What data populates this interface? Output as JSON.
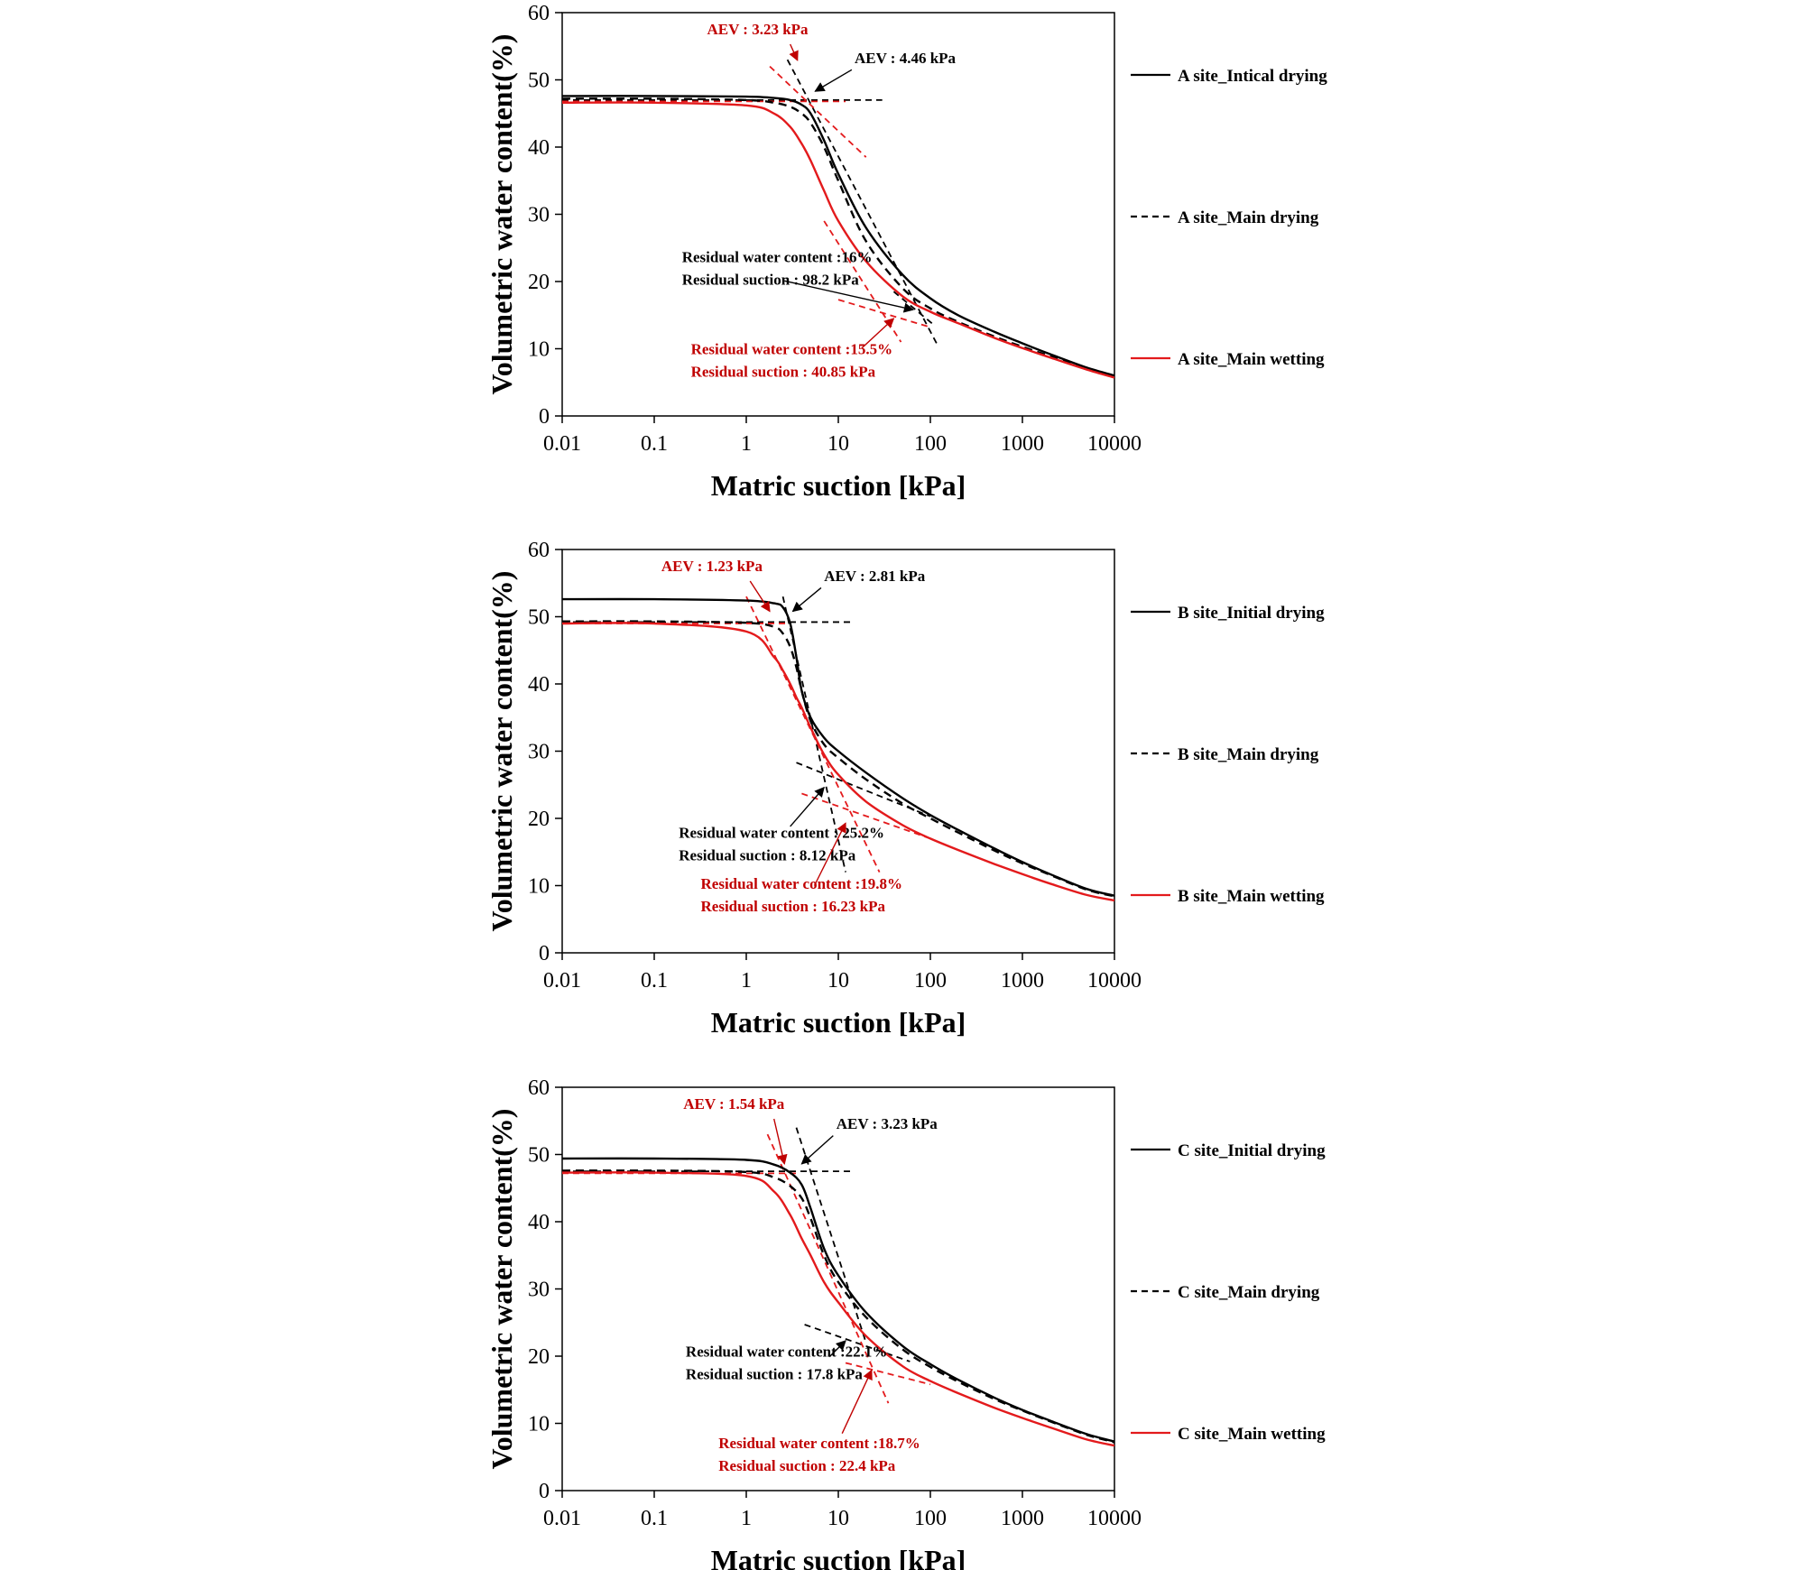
{
  "chart_data": [
    {
      "type": "line",
      "xscale": "log",
      "xlim": [
        0.01,
        10000
      ],
      "ylim": [
        0,
        60
      ],
      "xticks": [
        "0.01",
        "0.1",
        "1",
        "10",
        "100",
        "1000",
        "10000"
      ],
      "yticks": [
        "0",
        "10",
        "20",
        "30",
        "40",
        "50",
        "60"
      ],
      "xlabel": "Matric suction [kPa]",
      "ylabel": "Volumetric water content(%)",
      "legend_position": "right",
      "grid": false,
      "series": [
        {
          "name": "A site_Intical drying",
          "style": "solid",
          "color": "#000000",
          "x": [
            0.01,
            0.1,
            1,
            2,
            3,
            4,
            5,
            7,
            10,
            20,
            50,
            100,
            200,
            500,
            1000,
            2000,
            5000,
            10000
          ],
          "y": [
            47.6,
            47.6,
            47.5,
            47.3,
            47.0,
            46.3,
            45.0,
            41.0,
            36.0,
            28.0,
            21.0,
            17.5,
            15.0,
            12.5,
            10.8,
            9.2,
            7.2,
            6.0
          ]
        },
        {
          "name": "A site_Main drying",
          "style": "dashed",
          "color": "#000000",
          "x": [
            0.01,
            0.1,
            1,
            2,
            3,
            4,
            5,
            7,
            10,
            20,
            50,
            100,
            200,
            500,
            1000,
            2000,
            5000,
            10000
          ],
          "y": [
            47.2,
            47.2,
            47.0,
            46.6,
            46.0,
            45.0,
            43.6,
            40.0,
            35.0,
            26.0,
            19.0,
            16.0,
            14.0,
            11.8,
            10.3,
            8.9,
            7.1,
            5.9
          ]
        },
        {
          "name": "A site_Main wetting",
          "style": "solid",
          "color": "#e31a1c",
          "x": [
            0.01,
            0.1,
            1,
            2,
            3,
            4,
            5,
            7,
            10,
            20,
            50,
            100,
            200,
            500,
            1000,
            2000,
            5000,
            10000
          ],
          "y": [
            46.6,
            46.6,
            46.2,
            45.0,
            43.0,
            40.5,
            38.0,
            33.5,
            29.0,
            23.0,
            17.8,
            15.5,
            13.8,
            11.6,
            10.1,
            8.7,
            6.9,
            5.7
          ]
        }
      ],
      "tangents": [
        {
          "color": "#000000",
          "x": [
            0.01,
            30
          ],
          "y": [
            47.0,
            47.0
          ]
        },
        {
          "color": "#000000",
          "x": [
            2.8,
            120
          ],
          "y": [
            53.0,
            10.5
          ]
        },
        {
          "color": "#000000",
          "x": [
            40,
            110
          ],
          "y": [
            18.5,
            13.5
          ]
        },
        {
          "color": "#e31a1c",
          "x": [
            0.01,
            12
          ],
          "y": [
            46.8,
            46.8
          ]
        },
        {
          "color": "#e31a1c",
          "x": [
            1.8,
            20
          ],
          "y": [
            52.0,
            38.5
          ]
        },
        {
          "color": "#e31a1c",
          "x": [
            7,
            48
          ],
          "y": [
            29.0,
            11.0
          ]
        },
        {
          "color": "#e31a1c",
          "x": [
            10,
            100
          ],
          "y": [
            17.3,
            13.2
          ]
        }
      ],
      "annotations": [
        {
          "lines": [
            "AEV : 3.23 kPa"
          ],
          "color": "#c00000",
          "anchor": "end",
          "x": 4.7,
          "y": 56.8,
          "arrow_from": [
            3.0,
            55.3
          ],
          "arrow_to": [
            3.6,
            52.9
          ]
        },
        {
          "lines": [
            "AEV : 4.46 kPa"
          ],
          "color": "#000000",
          "anchor": "start",
          "x": 15.0,
          "y": 52.5,
          "arrow_from": [
            14.0,
            51.5
          ],
          "arrow_to": [
            5.6,
            48.3
          ]
        },
        {
          "lines": [
            "Residual water content :16%",
            "Residual suction : 98.2 kPa"
          ],
          "color": "#000000",
          "anchor": "start",
          "x": 0.2,
          "y": 22.9,
          "arrow_from": [
            2.6,
            20.1
          ],
          "arrow_to": [
            65,
            15.8
          ]
        },
        {
          "lines": [
            "Residual water content :15.5%",
            "Residual suction : 40.85 kPa"
          ],
          "color": "#c00000",
          "anchor": "start",
          "x": 0.25,
          "y": 9.2,
          "arrow_from": [
            18,
            10.1
          ],
          "arrow_to": [
            40,
            14.5
          ]
        }
      ]
    },
    {
      "type": "line",
      "xscale": "log",
      "xlim": [
        0.01,
        10000
      ],
      "ylim": [
        0,
        60
      ],
      "xticks": [
        "0.01",
        "0.1",
        "1",
        "10",
        "100",
        "1000",
        "10000"
      ],
      "yticks": [
        "0",
        "10",
        "20",
        "30",
        "40",
        "50",
        "60"
      ],
      "xlabel": "Matric suction [kPa]",
      "ylabel": "Volumetric water content(%)",
      "legend_position": "right",
      "grid": false,
      "series": [
        {
          "name": "B site_Initial drying",
          "style": "solid",
          "color": "#000000",
          "x": [
            0.01,
            0.1,
            1,
            2,
            2.5,
            3,
            3.5,
            4,
            5,
            7,
            10,
            20,
            50,
            100,
            200,
            500,
            1000,
            2000,
            5000,
            10000
          ],
          "y": [
            52.6,
            52.6,
            52.4,
            52.0,
            51.4,
            49.0,
            44.0,
            39.0,
            35.0,
            32.0,
            30.0,
            26.8,
            23.0,
            20.5,
            18.3,
            15.5,
            13.5,
            11.7,
            9.5,
            8.5
          ]
        },
        {
          "name": "B site_Main drying",
          "style": "dashed",
          "color": "#000000",
          "x": [
            0.01,
            0.1,
            1,
            2,
            2.5,
            3,
            3.5,
            4,
            5,
            7,
            10,
            20,
            50,
            100,
            200,
            500,
            1000,
            2000,
            5000,
            10000
          ],
          "y": [
            49.3,
            49.3,
            49.1,
            48.5,
            47.5,
            45.5,
            42.5,
            39.0,
            34.5,
            31.0,
            29.0,
            25.8,
            22.2,
            20.0,
            17.9,
            15.2,
            13.3,
            11.6,
            9.4,
            8.4
          ]
        },
        {
          "name": "B site_Main wetting",
          "style": "solid",
          "color": "#e31a1c",
          "x": [
            0.01,
            0.1,
            1,
            2,
            2.5,
            3,
            3.5,
            4,
            5,
            7,
            10,
            20,
            50,
            100,
            200,
            500,
            1000,
            2000,
            5000,
            10000
          ],
          "y": [
            49.0,
            49.0,
            47.8,
            44.0,
            42.0,
            40.0,
            38.0,
            36.5,
            33.5,
            29.5,
            26.5,
            22.5,
            19.0,
            17.0,
            15.3,
            13.2,
            11.7,
            10.3,
            8.6,
            7.8
          ]
        }
      ],
      "tangents": [
        {
          "color": "#000000",
          "x": [
            0.01,
            15
          ],
          "y": [
            49.2,
            49.2
          ]
        },
        {
          "color": "#000000",
          "x": [
            2.5,
            12
          ],
          "y": [
            53.0,
            12.0
          ]
        },
        {
          "color": "#000000",
          "x": [
            3.5,
            100
          ],
          "y": [
            28.3,
            20.3
          ]
        },
        {
          "color": "#e31a1c",
          "x": [
            0.01,
            3
          ],
          "y": [
            49.0,
            49.0
          ]
        },
        {
          "color": "#e31a1c",
          "x": [
            1.0,
            28
          ],
          "y": [
            53.0,
            12.0
          ]
        },
        {
          "color": "#e31a1c",
          "x": [
            4,
            100
          ],
          "y": [
            23.7,
            17.0
          ]
        }
      ],
      "annotations": [
        {
          "lines": [
            "AEV : 1.23 kPa"
          ],
          "color": "#c00000",
          "anchor": "end",
          "x": 1.5,
          "y": 56.8,
          "arrow_from": [
            1.1,
            55.3
          ],
          "arrow_to": [
            1.8,
            50.8
          ]
        },
        {
          "lines": [
            "AEV : 2.81 kPa"
          ],
          "color": "#000000",
          "anchor": "start",
          "x": 7.0,
          "y": 55.3,
          "arrow_from": [
            6.5,
            54.3
          ],
          "arrow_to": [
            3.2,
            50.8
          ]
        },
        {
          "lines": [
            "Residual water content : 25.2%",
            "Residual suction : 8.12 kPa"
          ],
          "color": "#000000",
          "anchor": "start",
          "x": 0.185,
          "y": 17.1,
          "arrow_from": [
            3.0,
            18.8
          ],
          "arrow_to": [
            7.0,
            24.6
          ]
        },
        {
          "lines": [
            "Residual water content :19.8%",
            "Residual suction : 16.23 kPa"
          ],
          "color": "#c00000",
          "anchor": "start",
          "x": 0.32,
          "y": 9.5,
          "arrow_from": [
            5.5,
            10.0
          ],
          "arrow_to": [
            12.0,
            19.3
          ]
        }
      ]
    },
    {
      "type": "line",
      "xscale": "log",
      "xlim": [
        0.01,
        10000
      ],
      "ylim": [
        0,
        60
      ],
      "xticks": [
        "0.01",
        "0.1",
        "1",
        "10",
        "100",
        "1000",
        "10000"
      ],
      "yticks": [
        "0",
        "10",
        "20",
        "30",
        "40",
        "50",
        "60"
      ],
      "xlabel": "Matric suction [kPa]",
      "ylabel": "Volumetric water content(%)",
      "legend_position": "right",
      "grid": false,
      "series": [
        {
          "name": "C site_Initial drying",
          "style": "solid",
          "color": "#000000",
          "x": [
            0.01,
            0.1,
            1,
            2,
            3,
            4,
            5,
            7,
            10,
            20,
            50,
            100,
            200,
            500,
            1000,
            2000,
            5000,
            10000
          ],
          "y": [
            49.4,
            49.4,
            49.2,
            48.5,
            47.3,
            45.5,
            42.0,
            36.0,
            32.0,
            26.5,
            21.5,
            18.8,
            16.5,
            13.8,
            12.0,
            10.4,
            8.4,
            7.3
          ]
        },
        {
          "name": "C site_Main drying",
          "style": "dashed",
          "color": "#000000",
          "x": [
            0.01,
            0.1,
            1,
            2,
            3,
            4,
            5,
            7,
            10,
            20,
            50,
            100,
            200,
            500,
            1000,
            2000,
            5000,
            10000
          ],
          "y": [
            47.6,
            47.6,
            47.4,
            46.6,
            45.3,
            43.5,
            40.5,
            35.0,
            31.0,
            25.8,
            21.0,
            18.4,
            16.2,
            13.6,
            11.9,
            10.3,
            8.3,
            7.2
          ]
        },
        {
          "name": "C site_Main wetting",
          "style": "solid",
          "color": "#e31a1c",
          "x": [
            0.01,
            0.1,
            1,
            2,
            3,
            4,
            5,
            7,
            10,
            20,
            50,
            100,
            200,
            500,
            1000,
            2000,
            5000,
            10000
          ],
          "y": [
            47.3,
            47.3,
            46.8,
            44.5,
            41.0,
            37.5,
            35.0,
            31.0,
            28.0,
            23.0,
            18.5,
            16.3,
            14.5,
            12.3,
            10.8,
            9.4,
            7.6,
            6.7
          ]
        }
      ],
      "tangents": [
        {
          "color": "#000000",
          "x": [
            0.01,
            15
          ],
          "y": [
            47.5,
            47.5
          ]
        },
        {
          "color": "#000000",
          "x": [
            3.5,
            20
          ],
          "y": [
            54.0,
            22.0
          ]
        },
        {
          "color": "#000000",
          "x": [
            4.3,
            60
          ],
          "y": [
            24.7,
            19.2
          ]
        },
        {
          "color": "#e31a1c",
          "x": [
            0.01,
            3.5
          ],
          "y": [
            47.2,
            47.2
          ]
        },
        {
          "color": "#e31a1c",
          "x": [
            1.7,
            35
          ],
          "y": [
            53.0,
            13.0
          ]
        },
        {
          "color": "#e31a1c",
          "x": [
            12,
            100
          ],
          "y": [
            19.0,
            15.8
          ]
        }
      ],
      "annotations": [
        {
          "lines": [
            "AEV : 1.54 kPa"
          ],
          "color": "#c00000",
          "anchor": "end",
          "x": 2.6,
          "y": 56.8,
          "arrow_from": [
            2.0,
            55.3
          ],
          "arrow_to": [
            2.6,
            48.6
          ]
        },
        {
          "lines": [
            "AEV : 3.23 kPa"
          ],
          "color": "#000000",
          "anchor": "start",
          "x": 9.5,
          "y": 53.8,
          "arrow_from": [
            8.8,
            52.8
          ],
          "arrow_to": [
            4.0,
            48.6
          ]
        },
        {
          "lines": [
            "Residual water content :22.1%",
            "Residual suction : 17.8 kPa"
          ],
          "color": "#000000",
          "anchor": "start",
          "x": 0.22,
          "y": 19.9,
          "arrow_from": [
            8.0,
            19.9
          ],
          "arrow_to": [
            12.0,
            22.3
          ]
        },
        {
          "lines": [
            "Residual water content :18.7%",
            "Residual suction : 22.4 kPa"
          ],
          "color": "#c00000",
          "anchor": "start",
          "x": 0.5,
          "y": 6.3,
          "arrow_from": [
            11.0,
            8.5
          ],
          "arrow_to": [
            23.0,
            17.9
          ]
        }
      ]
    }
  ]
}
